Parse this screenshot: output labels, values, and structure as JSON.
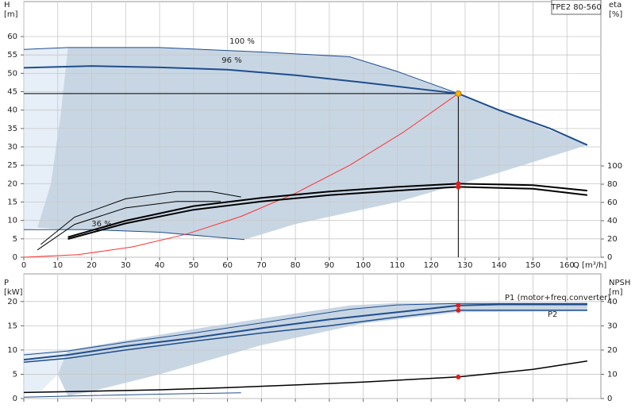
{
  "chart_data": [
    {
      "type": "line",
      "title": "TPE2 80-560",
      "xlabel": "Q [m³/h]",
      "ylabel": "H",
      "yunit": "[m]",
      "y2label": "eta",
      "y2unit": "[%]",
      "xlim": [
        0,
        170
      ],
      "xticks": [
        0,
        10,
        20,
        30,
        40,
        50,
        60,
        70,
        80,
        90,
        100,
        110,
        120,
        130,
        140,
        150,
        160
      ],
      "xticklabels": true,
      "ylim": [
        0,
        69.5
      ],
      "yticks": [
        0,
        5,
        10,
        15,
        20,
        25,
        30,
        35,
        40,
        45,
        50,
        55,
        60
      ],
      "y2lim": [
        0,
        280
      ],
      "y2ticks": [
        0,
        20,
        40,
        60,
        80,
        100
      ],
      "grid": true,
      "regions": [
        {
          "color": "#e6eef7",
          "x": [
            0,
            13,
            11,
            8,
            4,
            0
          ],
          "values": [
            56.5,
            57,
            40,
            20,
            8,
            7.5
          ]
        },
        {
          "color": "#c8d6e4",
          "x": [
            13,
            40,
            70,
            96,
            110,
            128,
            166,
            140,
            110,
            80,
            65,
            40,
            13,
            4,
            8,
            11
          ],
          "values": [
            57,
            57,
            55.8,
            54.5,
            50.5,
            44.5,
            30.5,
            23,
            15,
            9,
            4.8,
            6.8,
            7.5,
            8,
            20,
            40
          ]
        }
      ],
      "series": [
        {
          "name": "100 %",
          "color": "#1f4e8c",
          "width": 1,
          "x": [
            0,
            13,
            40,
            70,
            96,
            110,
            128
          ],
          "values": [
            56.5,
            57,
            57,
            55.8,
            54.5,
            50.5,
            44.5
          ]
        },
        {
          "name": "96 %",
          "color": "#1f4e8c",
          "width": 2,
          "x": [
            0,
            20,
            40,
            60,
            80,
            100,
            128,
            140,
            155,
            166
          ],
          "values": [
            51.5,
            52,
            51.6,
            51,
            49.5,
            47.5,
            44.5,
            40,
            35,
            30.5
          ]
        },
        {
          "name": "36 %",
          "color": "#1f4e8c",
          "width": 1,
          "x": [
            0,
            20,
            40,
            65
          ],
          "values": [
            7.5,
            7.5,
            6.8,
            4.8
          ]
        },
        {
          "color": "#ff3030",
          "width": 1,
          "x": [
            0,
            16,
            32,
            48,
            64,
            80,
            96,
            112,
            128
          ],
          "values": [
            0,
            0.7,
            2.8,
            6.3,
            11.1,
            17.4,
            25,
            34.1,
            44.5
          ]
        },
        {
          "color": "#000000",
          "width": 2,
          "axis": "y2",
          "x": [
            13,
            30,
            50,
            70,
            90,
            110,
            128,
            150,
            166
          ],
          "values": [
            22,
            40,
            56,
            65,
            72,
            77,
            80.5,
            79,
            73
          ]
        },
        {
          "color": "#000000",
          "width": 2,
          "axis": "y2",
          "x": [
            13,
            30,
            50,
            70,
            90,
            110,
            128,
            150,
            166
          ],
          "values": [
            20,
            37,
            52,
            61,
            68,
            73,
            77,
            75,
            68
          ]
        },
        {
          "color": "#000000",
          "width": 1,
          "axis": "y2",
          "x": [
            5,
            15,
            30,
            45,
            55,
            64
          ],
          "values": [
            14,
            44,
            64,
            72,
            72,
            66
          ]
        },
        {
          "color": "#000000",
          "width": 1,
          "axis": "y2",
          "x": [
            4,
            15,
            30,
            45,
            58
          ],
          "values": [
            8,
            36,
            54,
            61,
            61
          ]
        }
      ],
      "duty_point": {
        "x": 128,
        "y": 44.5,
        "color": "#f5b800"
      },
      "markers": [
        {
          "x": 128,
          "y": 80.5,
          "axis": "y2",
          "color": "#e31a1c"
        },
        {
          "x": 128,
          "y": 77,
          "axis": "y2",
          "color": "#e31a1c"
        }
      ]
    },
    {
      "type": "line",
      "ylabel": "P",
      "yunit": "[kW]",
      "y2label": "NPSH",
      "y2unit": "[m]",
      "xlim": [
        0,
        170
      ],
      "xticks": [
        0,
        10,
        20,
        30,
        40,
        50,
        60,
        70,
        80,
        90,
        100,
        110,
        120,
        130,
        140,
        150,
        160
      ],
      "xticklabels": false,
      "ylim": [
        0,
        25.7
      ],
      "yticks": [
        0,
        5,
        10,
        15,
        20
      ],
      "y2lim": [
        0,
        51.4
      ],
      "y2ticks": [
        0,
        10,
        20,
        30,
        40
      ],
      "grid": true,
      "regions": [
        {
          "color": "#e6eef7",
          "x": [
            0,
            13,
            10,
            5,
            0
          ],
          "values": [
            9.5,
            10,
            5,
            1.5,
            1.5
          ]
        },
        {
          "color": "#c8d6e4",
          "x": [
            13,
            30,
            50,
            70,
            96,
            110,
            166,
            166,
            128,
            100,
            70,
            40,
            20,
            13,
            10
          ],
          "values": [
            10,
            12,
            14.3,
            16.5,
            19.2,
            19.7,
            19.7,
            18,
            17.8,
            15.5,
            11,
            5,
            1.5,
            0.5,
            5
          ]
        }
      ],
      "series": [
        {
          "color": "#1f4e8c",
          "width": 1,
          "x": [
            0,
            13,
            30,
            50,
            70,
            96,
            110,
            128,
            166
          ],
          "values": [
            9,
            9.8,
            11.6,
            13.5,
            15.6,
            18.4,
            19.3,
            19.6,
            19.6
          ]
        },
        {
          "name": "P1 (motor+freq.converter)",
          "color": "#1f4e8c",
          "width": 2,
          "x": [
            0,
            13,
            30,
            50,
            70,
            90,
            110,
            128,
            140,
            166
          ],
          "values": [
            8,
            9,
            10.8,
            12.5,
            14.5,
            16.3,
            17.8,
            19.2,
            19.4,
            19.4
          ]
        },
        {
          "name": "P2",
          "color": "#1f4e8c",
          "width": 1.5,
          "x": [
            0,
            13,
            30,
            50,
            70,
            90,
            110,
            128,
            166
          ],
          "values": [
            7.5,
            8.3,
            10,
            11.8,
            13.5,
            15,
            16.8,
            18.2,
            18.2
          ]
        },
        {
          "color": "#1f4e8c",
          "width": 1,
          "x": [
            0,
            20,
            40,
            64
          ],
          "values": [
            0.3,
            0.6,
            0.9,
            1.2
          ]
        },
        {
          "color": "#000000",
          "width": 1.5,
          "axis": "y2",
          "x": [
            0,
            20,
            40,
            60,
            80,
            100,
            128,
            150,
            166
          ],
          "values": [
            2.5,
            3,
            3.6,
            4.5,
            5.6,
            6.8,
            8.9,
            12,
            15.5
          ]
        }
      ],
      "markers": [
        {
          "x": 128,
          "y": 19.2,
          "color": "#e31a1c"
        },
        {
          "x": 128,
          "y": 18.2,
          "color": "#e31a1c"
        },
        {
          "x": 128,
          "y": 8.9,
          "axis": "y2",
          "color": "#e31a1c"
        }
      ]
    }
  ]
}
